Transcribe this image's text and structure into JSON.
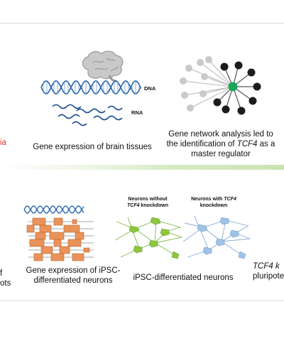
{
  "top_panel": {
    "left_edge_fragment": "ia",
    "dna_label": "DNA",
    "rna_label": "RNA",
    "caption_brain": "Gene expression of brain tissues",
    "caption_network_1": "Gene network analysis led to",
    "caption_network_2_pre": "the identification of ",
    "caption_network_2_gene": "TCF4",
    "caption_network_2_post": " as a",
    "caption_network_3": "master regulator"
  },
  "bottom_panel": {
    "left_fragment_1": "f",
    "left_fragment_2": "ots",
    "caption_ipsc_1": "Gene expression of iPSC-",
    "caption_ipsc_2": "differentiated neurons",
    "neurons_without_1": "Neurons without",
    "neurons_without_gene": "TCF4",
    "neurons_without_2": " knockdown",
    "neurons_with_1": "Neurons with ",
    "neurons_with_gene": "TCF4",
    "neurons_with_2": "knockdown",
    "caption_neurons": "iPSC-differentiated neurons",
    "right_fragment_1_gene": "TCF4",
    "right_fragment_1_rest": " k",
    "right_fragment_2": "pluripotent"
  },
  "colors": {
    "accent_red": "#e8312b",
    "dna_blue": "#1f5fa8",
    "network_green": "#1aa65a",
    "node_black": "#1c1c1c",
    "node_gray": "#c9c9c9",
    "neuron_green": "#8dc63f",
    "neuron_blue": "#9fc3e6",
    "gene_orange": "#e9935a"
  },
  "icons": [
    "brain-icon",
    "dna-helix-icon",
    "rna-strands-icon",
    "gene-network-icon",
    "gene-blocks-icon",
    "neuron-network-icon"
  ]
}
